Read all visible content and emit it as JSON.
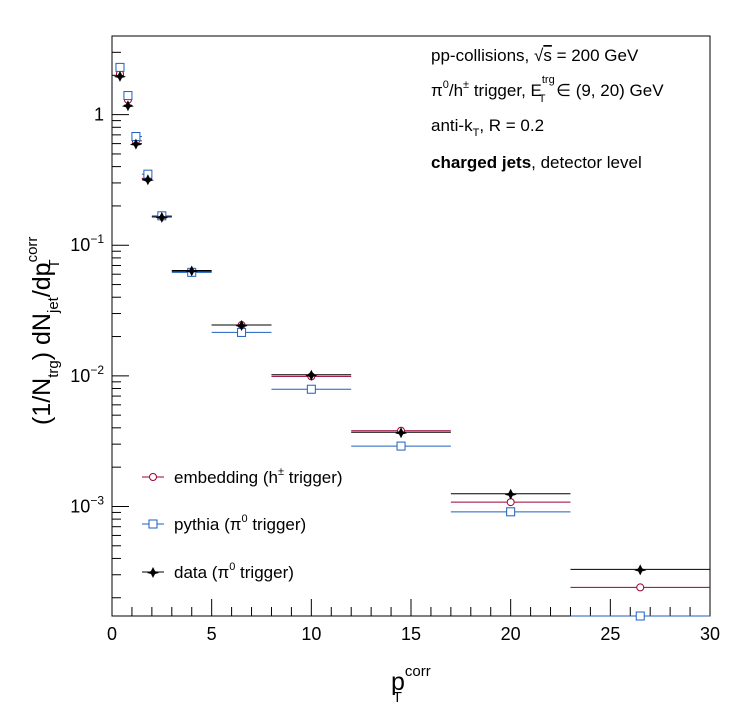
{
  "chart_data": {
    "type": "scatter",
    "x_axis": {
      "range": [
        0,
        30
      ],
      "scale": "linear",
      "major_ticks": [
        0,
        5,
        10,
        15,
        20,
        25,
        30
      ],
      "tick_labels": [
        "0",
        "5",
        "10",
        "15",
        "20",
        "25",
        "30"
      ],
      "label_main": "p",
      "label_sub": "T",
      "label_sup": "corr"
    },
    "y_axis": {
      "range": [
        0.000145,
        4.0
      ],
      "scale": "log",
      "decade_ticks": [
        0.001,
        0.01,
        0.1,
        1
      ],
      "tick_labels": [
        {
          "mant": "10",
          "exp": "−3"
        },
        {
          "mant": "10",
          "exp": "−2"
        },
        {
          "mant": "10",
          "exp": "−1"
        },
        {
          "mant": "1",
          "exp": ""
        }
      ],
      "label_parts": {
        "p1": "(1/N",
        "s1": "trg",
        "p2": ") dN",
        "s2": "jet",
        "p3": "/dp",
        "s3": "T",
        "sup": "corr"
      }
    },
    "grid": false,
    "annotations": {
      "line1_pre": "pp-collisions, ",
      "line1_sqrt": "√",
      "line1_s": "s",
      "line1_post": " = 200 GeV",
      "line2_pi": "π",
      "line2_pi_sup": "0",
      "line2_h": "/h",
      "line2_h_sup": "±",
      "line2_mid": " trigger, E",
      "line2_e_sup": "trg",
      "line2_e_sub": "T",
      "line2_post": " ∈ (9, 20) GeV",
      "line3_pre": "anti-k",
      "line3_sub": "T",
      "line3_post": ", R = 0.2",
      "line4_bold": "charged jets",
      "line4_post": ", detector level"
    },
    "legend": {
      "position": "bottom-left",
      "entries": [
        {
          "series": 0,
          "pre": "embedding (h",
          "sup": "±",
          "post": " trigger)"
        },
        {
          "series": 1,
          "pre": "pythia (π",
          "sup": "0",
          "post": " trigger)"
        },
        {
          "series": 2,
          "pre": "data (π",
          "sup": "0",
          "post": " trigger)"
        }
      ]
    },
    "x": [
      0.4,
      0.8,
      1.2,
      1.8,
      2.5,
      4.0,
      6.5,
      10.0,
      14.5,
      20.0,
      26.5
    ],
    "x_low": [
      0.2,
      0.6,
      1.0,
      1.5,
      2.0,
      3.0,
      5.0,
      8.0,
      12.0,
      17.0,
      23.0
    ],
    "x_high": [
      0.6,
      1.0,
      1.5,
      2.0,
      3.0,
      5.0,
      8.0,
      12.0,
      17.0,
      23.0,
      30.0
    ],
    "series": [
      {
        "marker": "circle-open",
        "color": "#990033",
        "values": [
          2.05,
          1.3,
          0.63,
          0.325,
          0.165,
          0.063,
          0.0245,
          0.0099,
          0.0038,
          0.00108,
          0.00024
        ]
      },
      {
        "marker": "square-open",
        "color": "#1f5fbf",
        "values": [
          2.3,
          1.4,
          0.68,
          0.35,
          0.168,
          0.062,
          0.0215,
          0.0079,
          0.0029,
          0.00091,
          0.000145
        ]
      },
      {
        "marker": "star-filled",
        "color": "#000000",
        "values": [
          1.98,
          1.18,
          0.6,
          0.32,
          0.165,
          0.064,
          0.0245,
          0.0102,
          0.0037,
          0.00125,
          0.00033
        ]
      }
    ]
  }
}
